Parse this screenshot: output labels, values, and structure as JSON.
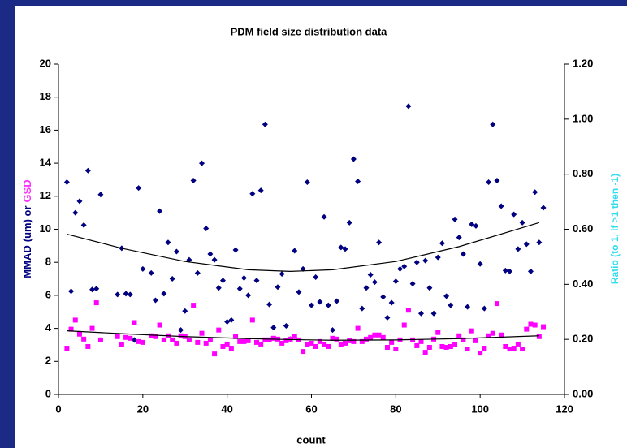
{
  "chart_data": {
    "type": "scatter",
    "title": "PDM field size distribution data",
    "xlabel": "count",
    "ylabel_parts": [
      {
        "text": "MMAD",
        "color": "#000080"
      },
      {
        "text": "(um) or",
        "color": "#000080"
      },
      {
        "text": "GSD",
        "color": "#ff33ff"
      }
    ],
    "y2label": "Ratio (to 1, if >1 then -1)",
    "y2label_color": "#33ddee",
    "xlim": [
      0,
      120
    ],
    "xticks": [
      0,
      20,
      40,
      60,
      80,
      100,
      120
    ],
    "ylim": [
      0,
      20
    ],
    "yticks": [
      0,
      2,
      4,
      6,
      8,
      10,
      12,
      14,
      16,
      18,
      20
    ],
    "y2lim": [
      0,
      1.2
    ],
    "y2ticks": [
      {
        "value": 0,
        "label": "0.00"
      },
      {
        "value": 0.2,
        "label": "0.20"
      },
      {
        "value": 0.4,
        "label": "0.40"
      },
      {
        "value": 0.6,
        "label": "0.60"
      },
      {
        "value": 0.8,
        "label": "0.80"
      },
      {
        "value": 1.0,
        "label": "1.00"
      },
      {
        "value": 1.2,
        "label": "1.20"
      }
    ],
    "x": [
      2,
      3,
      4,
      5,
      6,
      7,
      8,
      9,
      10,
      14,
      15,
      16,
      17,
      18,
      19,
      20,
      22,
      23,
      24,
      25,
      26,
      27,
      28,
      29,
      30,
      31,
      32,
      33,
      34,
      35,
      36,
      37,
      38,
      39,
      40,
      41,
      42,
      43,
      44,
      45,
      46,
      47,
      48,
      49,
      50,
      51,
      52,
      53,
      54,
      55,
      56,
      57,
      58,
      59,
      60,
      61,
      62,
      63,
      64,
      65,
      66,
      67,
      68,
      69,
      70,
      71,
      72,
      73,
      74,
      75,
      76,
      77,
      78,
      79,
      80,
      81,
      82,
      83,
      84,
      85,
      86,
      87,
      88,
      89,
      90,
      91,
      92,
      93,
      94,
      95,
      96,
      97,
      98,
      99,
      100,
      101,
      102,
      103,
      104,
      105,
      106,
      107,
      108,
      109,
      110,
      111,
      112,
      113,
      114,
      115
    ],
    "series": [
      {
        "name": "MMAD",
        "color": "#000080",
        "marker": "diamond",
        "values": [
          12.85,
          6.25,
          11,
          11.7,
          10.25,
          13.55,
          6.35,
          6.4,
          12.1,
          6.05,
          8.85,
          6.1,
          6.05,
          3.3,
          12.5,
          7.6,
          7.35,
          5.7,
          11.1,
          6.1,
          9.2,
          7.0,
          8.65,
          3.9,
          5.05,
          8.15,
          12.95,
          7.35,
          14.0,
          10.05,
          8.5,
          8.15,
          6.45,
          6.9,
          4.4,
          4.5,
          8.75,
          6.4,
          7.05,
          6.0,
          12.15,
          6.9,
          12.35,
          16.35,
          5.45,
          4.05,
          6.5,
          7.3,
          4.15,
          3.35,
          8.7,
          6.2,
          7.6,
          12.85,
          5.4,
          7.1,
          5.6,
          10.75,
          5.4,
          3.9,
          5.65,
          8.9,
          8.8,
          10.4,
          14.25,
          12.9,
          5.2,
          6.45,
          7.25,
          6.8,
          9.2,
          5.9,
          4.65,
          5.55,
          6.85,
          7.6,
          7.75,
          17.45,
          6.7,
          8.0,
          4.9,
          8.1,
          6.45,
          4.9,
          8.3,
          9.15,
          5.95,
          5.4,
          10.6,
          9.5,
          8.5,
          5.3,
          10.3,
          10.2,
          7.9,
          5.2,
          12.85,
          16.35,
          12.95,
          11.4,
          7.5,
          7.45,
          10.9,
          8.8,
          10.4,
          9.1,
          7.45,
          12.25,
          9.2,
          11.3
        ]
      },
      {
        "name": "GSD",
        "color": "#ff00ff",
        "marker": "square",
        "values": [
          2.8,
          3.95,
          4.5,
          3.65,
          3.35,
          2.9,
          4.0,
          5.55,
          3.3,
          3.5,
          3.0,
          3.45,
          3.4,
          4.35,
          3.2,
          3.15,
          3.55,
          3.5,
          4.2,
          3.3,
          3.55,
          3.3,
          3.1,
          3.55,
          3.5,
          3.3,
          5.4,
          3.15,
          3.7,
          3.1,
          3.3,
          2.45,
          3.9,
          2.9,
          3.05,
          2.8,
          3.5,
          3.2,
          3.2,
          3.25,
          4.5,
          3.15,
          3.05,
          3.3,
          3.3,
          3.4,
          3.35,
          3.1,
          3.25,
          3.35,
          3.5,
          3.3,
          2.6,
          3.0,
          3.1,
          2.9,
          3.2,
          3.0,
          2.9,
          3.4,
          3.35,
          3.0,
          3.1,
          3.25,
          3.2,
          4.0,
          3.2,
          3.35,
          3.45,
          3.6,
          3.6,
          3.45,
          2.85,
          3.15,
          2.75,
          3.3,
          4.2,
          5.1,
          3.3,
          2.95,
          3.2,
          2.55,
          2.85,
          3.35,
          3.75,
          2.9,
          2.85,
          2.9,
          3.0,
          3.55,
          3.3,
          2.75,
          3.85,
          3.25,
          2.5,
          2.8,
          3.55,
          3.7,
          5.5,
          3.6,
          2.9,
          2.75,
          2.8,
          3.05,
          2.75,
          3.95,
          4.25,
          4.2,
          3.5,
          4.1
        ]
      }
    ],
    "trendlines": [
      {
        "color": "#000000",
        "x": [
          2,
          15,
          30,
          45,
          55,
          65,
          80,
          95,
          114
        ],
        "values": [
          9.7,
          8.85,
          8.05,
          7.55,
          7.45,
          7.55,
          8.05,
          8.95,
          10.4
        ]
      },
      {
        "color": "#000000",
        "x": [
          2,
          15,
          30,
          45,
          55,
          65,
          80,
          95,
          114
        ],
        "values": [
          3.85,
          3.68,
          3.5,
          3.38,
          3.32,
          3.28,
          3.3,
          3.38,
          3.55
        ]
      }
    ]
  }
}
